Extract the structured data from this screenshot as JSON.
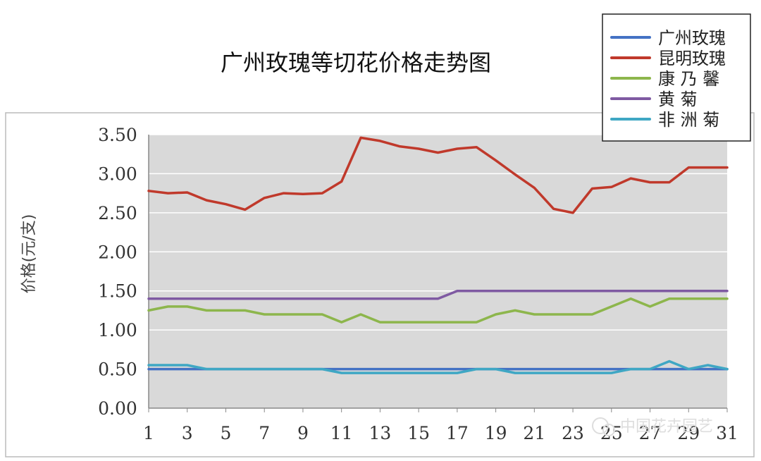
{
  "chart_data": {
    "type": "line",
    "title": "广州玫瑰等切花价格走势图",
    "ylabel": "价格(元/支)",
    "xlabel": "",
    "ylim": [
      0,
      3.5
    ],
    "xlim": [
      1,
      31
    ],
    "yticks": [
      "0.00",
      "0.50",
      "1.00",
      "1.50",
      "2.00",
      "2.50",
      "3.00",
      "3.50"
    ],
    "xticks": [
      "1",
      "3",
      "5",
      "7",
      "9",
      "11",
      "13",
      "15",
      "17",
      "19",
      "21",
      "23",
      "25",
      "27",
      "29",
      "31"
    ],
    "x": [
      1,
      2,
      3,
      4,
      5,
      6,
      7,
      8,
      9,
      10,
      11,
      12,
      13,
      14,
      15,
      16,
      17,
      18,
      19,
      20,
      21,
      22,
      23,
      24,
      25,
      26,
      27,
      28,
      29,
      30,
      31
    ],
    "grid": true,
    "plot_background": "#d9d9d9",
    "legend_position": "top-right",
    "series": [
      {
        "name": "广州玫瑰",
        "color": "#4472c4",
        "values": [
          0.5,
          0.5,
          0.5,
          0.5,
          0.5,
          0.5,
          0.5,
          0.5,
          0.5,
          0.5,
          0.5,
          0.5,
          0.5,
          0.5,
          0.5,
          0.5,
          0.5,
          0.5,
          0.5,
          0.5,
          0.5,
          0.5,
          0.5,
          0.5,
          0.5,
          0.5,
          0.5,
          0.5,
          0.5,
          0.5,
          0.5
        ]
      },
      {
        "name": "昆明玫瑰",
        "color": "#c0392b",
        "values": [
          2.78,
          2.75,
          2.76,
          2.66,
          2.61,
          2.54,
          2.69,
          2.75,
          2.74,
          2.75,
          2.9,
          3.46,
          3.42,
          3.35,
          3.32,
          3.27,
          3.32,
          3.34,
          3.17,
          2.99,
          2.82,
          2.55,
          2.5,
          2.81,
          2.83,
          2.94,
          2.89,
          2.89,
          3.08,
          3.08,
          3.08
        ]
      },
      {
        "name": "康 乃 馨",
        "color": "#8db64c",
        "values": [
          1.25,
          1.3,
          1.3,
          1.25,
          1.25,
          1.25,
          1.2,
          1.2,
          1.2,
          1.2,
          1.1,
          1.2,
          1.1,
          1.1,
          1.1,
          1.1,
          1.1,
          1.1,
          1.2,
          1.25,
          1.2,
          1.2,
          1.2,
          1.2,
          1.3,
          1.4,
          1.3,
          1.4,
          1.4,
          1.4,
          1.4
        ]
      },
      {
        "name": "黄 菊",
        "color": "#7f5aa2",
        "values": [
          1.4,
          1.4,
          1.4,
          1.4,
          1.4,
          1.4,
          1.4,
          1.4,
          1.4,
          1.4,
          1.4,
          1.4,
          1.4,
          1.4,
          1.4,
          1.4,
          1.5,
          1.5,
          1.5,
          1.5,
          1.5,
          1.5,
          1.5,
          1.5,
          1.5,
          1.5,
          1.5,
          1.5,
          1.5,
          1.5,
          1.5
        ]
      },
      {
        "name": "非 洲 菊",
        "color": "#3fa7c4",
        "values": [
          0.55,
          0.55,
          0.55,
          0.5,
          0.5,
          0.5,
          0.5,
          0.5,
          0.5,
          0.5,
          0.45,
          0.45,
          0.45,
          0.45,
          0.45,
          0.45,
          0.45,
          0.5,
          0.5,
          0.45,
          0.45,
          0.45,
          0.45,
          0.45,
          0.45,
          0.5,
          0.5,
          0.6,
          0.5,
          0.55,
          0.5
        ]
      }
    ],
    "watermark": "中国花卉园艺"
  }
}
